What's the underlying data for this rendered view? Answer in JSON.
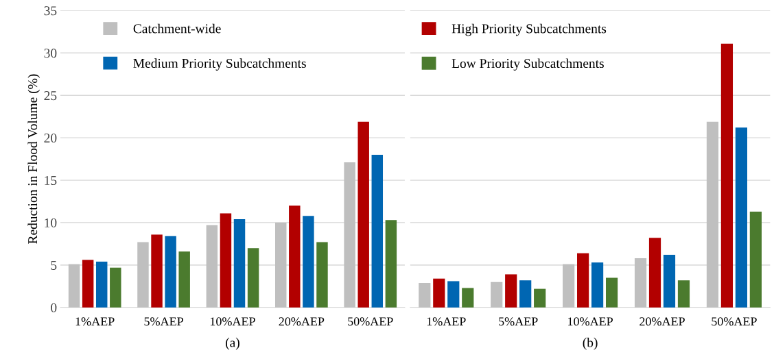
{
  "chart_data": [
    {
      "type": "bar",
      "xlabel": "(a)",
      "ylabel": "Reduction in Flood Volume (%)",
      "categories": [
        "1%AEP",
        "5%AEP",
        "10%AEP",
        "20%AEP",
        "50%AEP"
      ],
      "ylim": [
        0,
        35
      ],
      "yticks": [
        0,
        5,
        10,
        15,
        20,
        25,
        30,
        35
      ],
      "grid": "y",
      "legend": "top",
      "series": [
        {
          "name": "Catchment-wide",
          "color": "#bfbfbf",
          "values": [
            5.1,
            7.7,
            9.7,
            10.0,
            17.1
          ]
        },
        {
          "color": "#b20000",
          "values": [
            5.6,
            8.6,
            11.1,
            12.0,
            21.9
          ]
        },
        {
          "name": "Medium Priority Subcatchments",
          "color": "#0066b2",
          "values": [
            5.4,
            8.4,
            10.4,
            10.8,
            18.0
          ]
        },
        {
          "color": "#4b7b2e",
          "values": [
            4.7,
            6.6,
            7.0,
            7.7,
            10.3
          ]
        }
      ]
    },
    {
      "type": "bar",
      "xlabel": "(b)",
      "categories": [
        "1%AEP",
        "5%AEP",
        "10%AEP",
        "20%AEP",
        "50%AEP"
      ],
      "ylim": [
        0,
        35
      ],
      "yticks": [
        0,
        5,
        10,
        15,
        20,
        25,
        30,
        35
      ],
      "tick_labels": "x",
      "grid": "y",
      "legend": "top left",
      "series": [
        {
          "color": "#bfbfbf",
          "values": [
            2.9,
            3.0,
            5.1,
            5.8,
            21.9
          ]
        },
        {
          "name": "High Priority Subcatchments",
          "color": "#b20000",
          "values": [
            3.4,
            3.9,
            6.4,
            8.2,
            31.1
          ]
        },
        {
          "color": "#0066b2",
          "values": [
            3.1,
            3.2,
            5.3,
            6.2,
            21.2
          ]
        },
        {
          "name": "Low Priority Subcatchments",
          "color": "#4b7b2e",
          "values": [
            2.3,
            2.2,
            3.5,
            3.2,
            11.3
          ]
        }
      ]
    }
  ]
}
